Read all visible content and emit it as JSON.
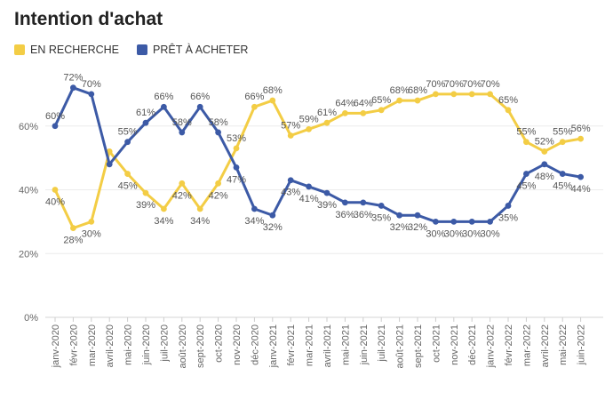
{
  "chart_data": {
    "type": "line",
    "title": "Intention d'achat",
    "xlabel": "",
    "ylabel": "",
    "ylim": [
      0,
      80
    ],
    "yticks": [
      "0%",
      "20%",
      "40%",
      "60%"
    ],
    "grid": true,
    "legend_position": "top-left",
    "categories": [
      "janv-2020",
      "févr-2020",
      "mar-2020",
      "avril-2020",
      "mai-2020",
      "juin-2020",
      "juil-2020",
      "août-2020",
      "sept-2020",
      "oct-2020",
      "nov-2020",
      "déc-2020",
      "janv-2021",
      "févr-2021",
      "mar-2021",
      "avril-2021",
      "mai-2021",
      "juin-2021",
      "juil-2021",
      "août-2021",
      "sept-2021",
      "oct-2021",
      "nov-2021",
      "déc-2021",
      "janv-2022",
      "févr-2022",
      "mar-2022",
      "avril-2022",
      "mai-2022",
      "juin-2022"
    ],
    "series": [
      {
        "name": "EN RECHERCHE",
        "color": "#f3cd45",
        "values": [
          40,
          28,
          30,
          52,
          45,
          39,
          34,
          42,
          34,
          42,
          53,
          66,
          68,
          57,
          59,
          61,
          64,
          64,
          65,
          68,
          68,
          70,
          70,
          70,
          70,
          65,
          55,
          52,
          55,
          56
        ],
        "labels": [
          "40%",
          "28%",
          "30%",
          "",
          "45%",
          "39%",
          "34%",
          "42%",
          "34%",
          "42%",
          "53%",
          "66%",
          "68%",
          "57%",
          "59%",
          "61%",
          "64%",
          "64%",
          "65%",
          "68%",
          "68%",
          "70%",
          "70%",
          "70%",
          "70%",
          "65%",
          "55%",
          "52%",
          "55%",
          "56%"
        ]
      },
      {
        "name": "PRÊT À ACHETER",
        "color": "#3c5aa6",
        "values": [
          60,
          72,
          70,
          48,
          55,
          61,
          66,
          58,
          66,
          58,
          47,
          34,
          32,
          43,
          41,
          39,
          36,
          36,
          35,
          32,
          32,
          30,
          30,
          30,
          30,
          35,
          45,
          48,
          45,
          44
        ],
        "labels": [
          "60%",
          "72%",
          "70%",
          "",
          "55%",
          "61%",
          "66%",
          "58%",
          "66%",
          "58%",
          "47%",
          "34%",
          "32%",
          "43%",
          "41%",
          "39%",
          "36%",
          "36%",
          "35%",
          "32%",
          "32%",
          "30%",
          "30%",
          "30%",
          "30%",
          "35%",
          "45%",
          "48%",
          "45%",
          "44%"
        ]
      }
    ]
  }
}
